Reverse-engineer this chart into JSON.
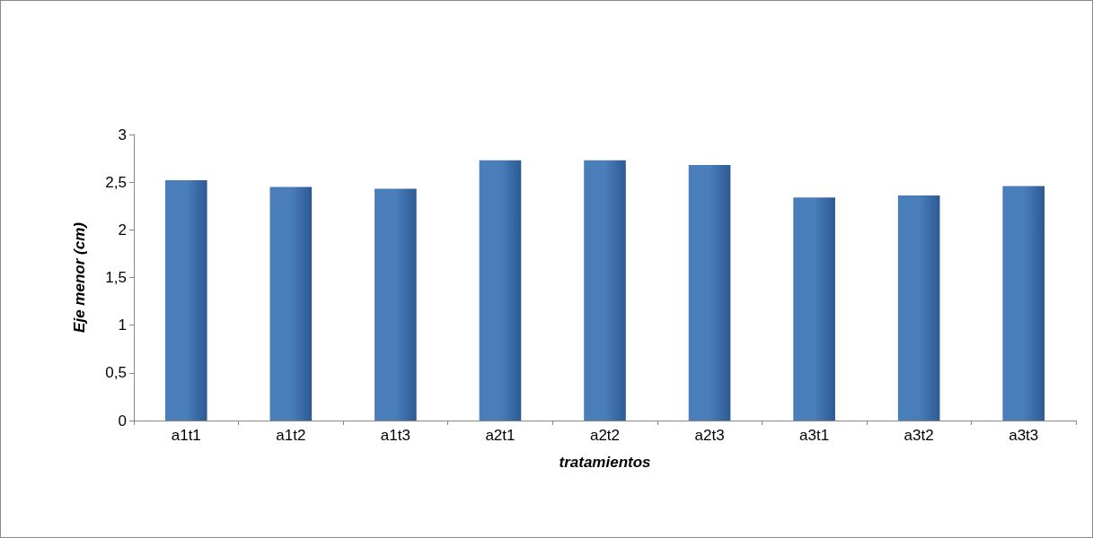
{
  "chart_data": {
    "type": "bar",
    "xlabel": "tratamientos",
    "ylabel": "Eje menor (cm)",
    "categories": [
      "a1t1",
      "a1t2",
      "a1t3",
      "a2t1",
      "a2t2",
      "a2t3",
      "a3t1",
      "a3t2",
      "a3t3"
    ],
    "values": [
      2.52,
      2.45,
      2.43,
      2.73,
      2.73,
      2.68,
      2.34,
      2.36,
      2.46
    ],
    "color": "#4a7ebb",
    "ylim": [
      0,
      3
    ],
    "yticks": [
      0,
      {
        "value": 0.5,
        "label": "0,5"
      },
      1,
      {
        "value": 1.5,
        "label": "1,5"
      },
      2,
      {
        "value": 2.5,
        "label": "2,5"
      },
      3
    ],
    "grid": false
  }
}
